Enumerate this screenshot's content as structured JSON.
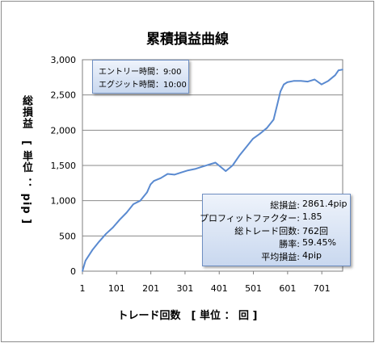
{
  "title": "累積損益曲線",
  "xlabel": "トレード回数　[ 単位 ： 回 ]",
  "ylabel": "総損益　[ 単位 ： pip ]",
  "settings_box": {
    "line1": "エントリー時間：9:00",
    "line2": "エグジット時間：10:00"
  },
  "stats": [
    {
      "label": "総損益:",
      "value": "2861.4pip"
    },
    {
      "label": "プロフィットファクター:",
      "value": "1.85"
    },
    {
      "label": "総トレード回数:",
      "value": "762回"
    },
    {
      "label": "勝率:",
      "value": "59.45%"
    },
    {
      "label": "平均損益:",
      "value": "4pip"
    }
  ],
  "chart_data": {
    "type": "line",
    "title": "累積損益曲線",
    "xlabel": "トレード回数　[ 単位 ： 回 ]",
    "ylabel": "総損益　[ 単位 ： pip ]",
    "xlim": [
      1,
      762
    ],
    "ylim": [
      0,
      3000
    ],
    "x_ticks": [
      1,
      101,
      201,
      301,
      401,
      501,
      601,
      701
    ],
    "y_ticks": [
      0,
      500,
      1000,
      1500,
      2000,
      2500,
      3000
    ],
    "y_tick_labels": [
      "0",
      "500",
      "1,000",
      "1,500",
      "2,000",
      "2,500",
      "3,000"
    ],
    "grid": "horizontal",
    "color": "#5a8ad0",
    "series": [
      {
        "x": [
          1,
          10,
          30,
          50,
          70,
          90,
          110,
          130,
          150,
          170,
          190,
          200,
          210,
          230,
          250,
          270,
          290,
          310,
          330,
          350,
          370,
          390,
          410,
          420,
          440,
          460,
          480,
          500,
          520,
          540,
          560,
          570,
          580,
          590,
          600,
          620,
          640,
          660,
          680,
          700,
          720,
          740,
          750,
          762
        ],
        "y": [
          0,
          150,
          300,
          420,
          530,
          620,
          730,
          830,
          950,
          1000,
          1120,
          1230,
          1280,
          1320,
          1380,
          1370,
          1400,
          1430,
          1450,
          1480,
          1510,
          1540,
          1460,
          1420,
          1500,
          1640,
          1760,
          1880,
          1950,
          2030,
          2150,
          2350,
          2550,
          2650,
          2680,
          2700,
          2700,
          2690,
          2720,
          2650,
          2700,
          2780,
          2850,
          2860
        ]
      }
    ]
  }
}
